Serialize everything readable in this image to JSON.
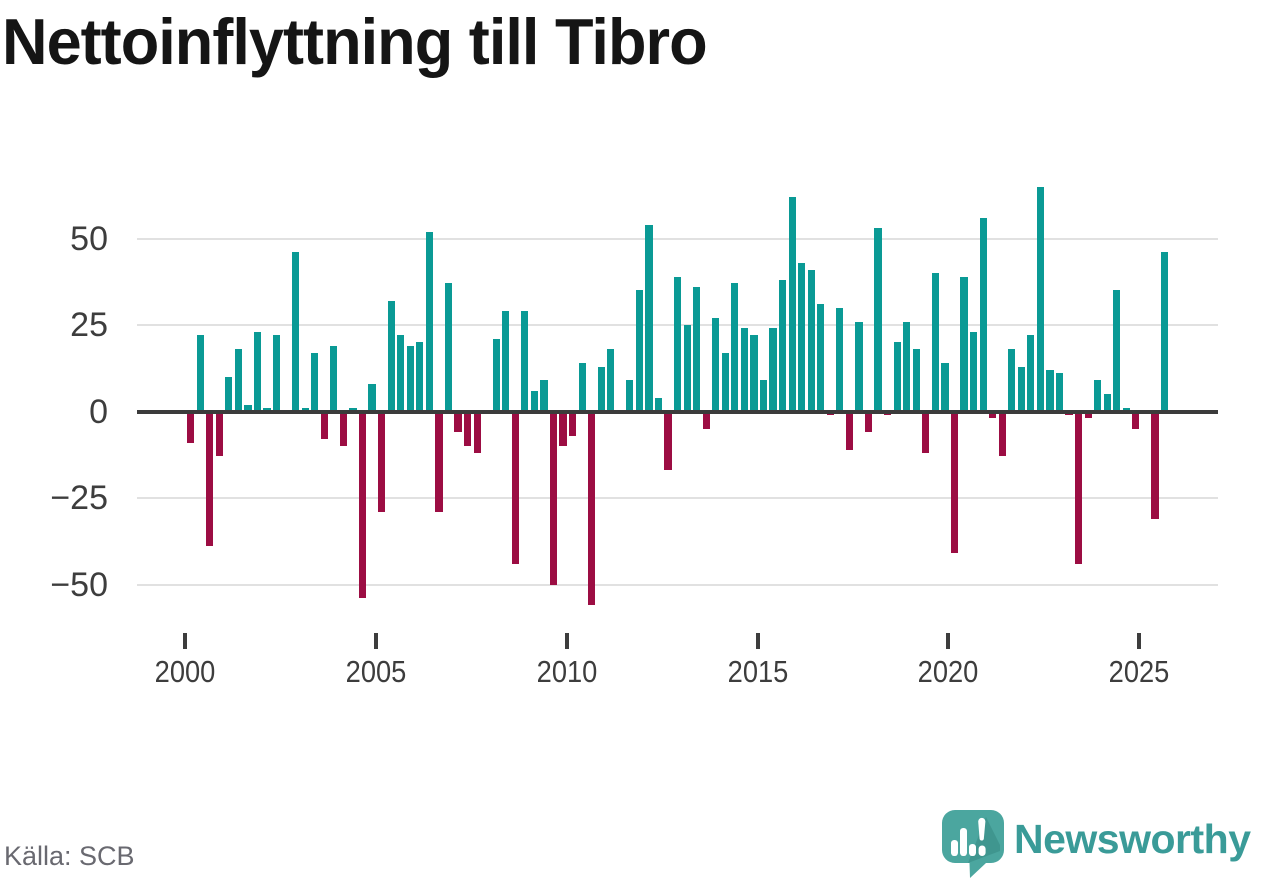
{
  "title": "Nettoinflyttning till Tibro",
  "source": "Källa: SCB",
  "branding": {
    "logo_text": "Newsworthy",
    "logo_icon": "newsworthy-speech-bubble-barchart-icon"
  },
  "colors": {
    "positive_bar": "#0a9a95",
    "negative_bar": "#9c0d43",
    "gridline": "#e1e1e1",
    "zero_axis": "#3b3b3b",
    "tick_text": "#3d3d3d",
    "title_text": "#151515",
    "source_text": "#696970",
    "brand_teal": "#3a9b98",
    "logo_bubble": "#4ba69f",
    "logo_bubble_shade": "#3f968f"
  },
  "chart_data": {
    "type": "bar",
    "title": "Nettoinflyttning till Tibro",
    "frequency": "quarterly",
    "start_period": "2000 Q1",
    "end_period": "2025 Q3",
    "values": [
      -9,
      22,
      -39,
      -13,
      10,
      18,
      2,
      23,
      1,
      22,
      0,
      46,
      1,
      17,
      -8,
      19,
      -10,
      1,
      -54,
      8,
      -29,
      32,
      22,
      19,
      20,
      52,
      -29,
      37,
      -6,
      -10,
      -12,
      0,
      21,
      29,
      -44,
      29,
      6,
      9,
      -50,
      -10,
      -7,
      14,
      -56,
      13,
      18,
      0,
      9,
      35,
      54,
      4,
      -17,
      39,
      25,
      36,
      -5,
      27,
      17,
      37,
      24,
      22,
      9,
      24,
      38,
      62,
      43,
      41,
      31,
      -1,
      30,
      -11,
      26,
      -6,
      53,
      -1,
      20,
      26,
      18,
      -12,
      40,
      14,
      -41,
      39,
      23,
      56,
      -2,
      -13,
      18,
      13,
      22,
      65,
      12,
      11,
      -1,
      -44,
      -2,
      9,
      5,
      35,
      1,
      -5,
      0,
      -31,
      46
    ],
    "y_ticks": [
      50,
      25,
      0,
      -25,
      -50
    ],
    "x_tick_years": [
      2000,
      2005,
      2010,
      2015,
      2020,
      2025
    ],
    "ylim": [
      -60,
      68
    ],
    "grid": true,
    "legend_position": "none",
    "positive_color": "#0a9a95",
    "negative_color": "#9c0d43"
  }
}
